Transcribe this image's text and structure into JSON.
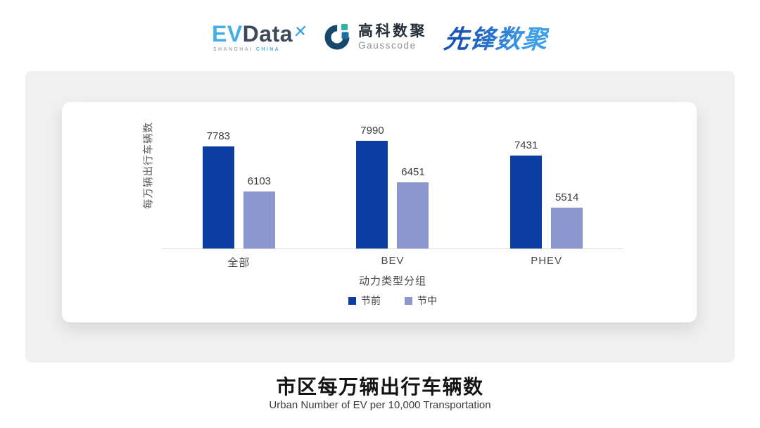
{
  "header": {
    "evdata": {
      "ev": "EV",
      "data": "Data",
      "sub_left": "SHANGHAI",
      "sub_right": "CHINA",
      "ev_color": "#45AFE5",
      "data_color": "#3D4A59"
    },
    "gausscode": {
      "cn": "高科数聚",
      "en": "Gausscode"
    },
    "pioneer": {
      "text": "先锋数聚",
      "color": "#2E7CD6"
    }
  },
  "chart_data": {
    "type": "bar",
    "categories": [
      "全部",
      "BEV",
      "PHEV"
    ],
    "series": [
      {
        "name": "节前",
        "color": "#0C3DA2",
        "values": [
          7783,
          7990,
          7431
        ]
      },
      {
        "name": "节中",
        "color": "#8B97CE",
        "values": [
          6103,
          6451,
          5514
        ]
      }
    ],
    "xlabel": "动力类型分组",
    "ylabel": "每万辆出行车辆数",
    "y_axis_min": 4000,
    "y_axis_max": 9400,
    "grid": false,
    "legend_position": "bottom",
    "value_labels": true
  },
  "footer": {
    "title": "市区每万辆出行车辆数",
    "subtitle": "Urban Number of EV per 10,000 Transportation"
  }
}
